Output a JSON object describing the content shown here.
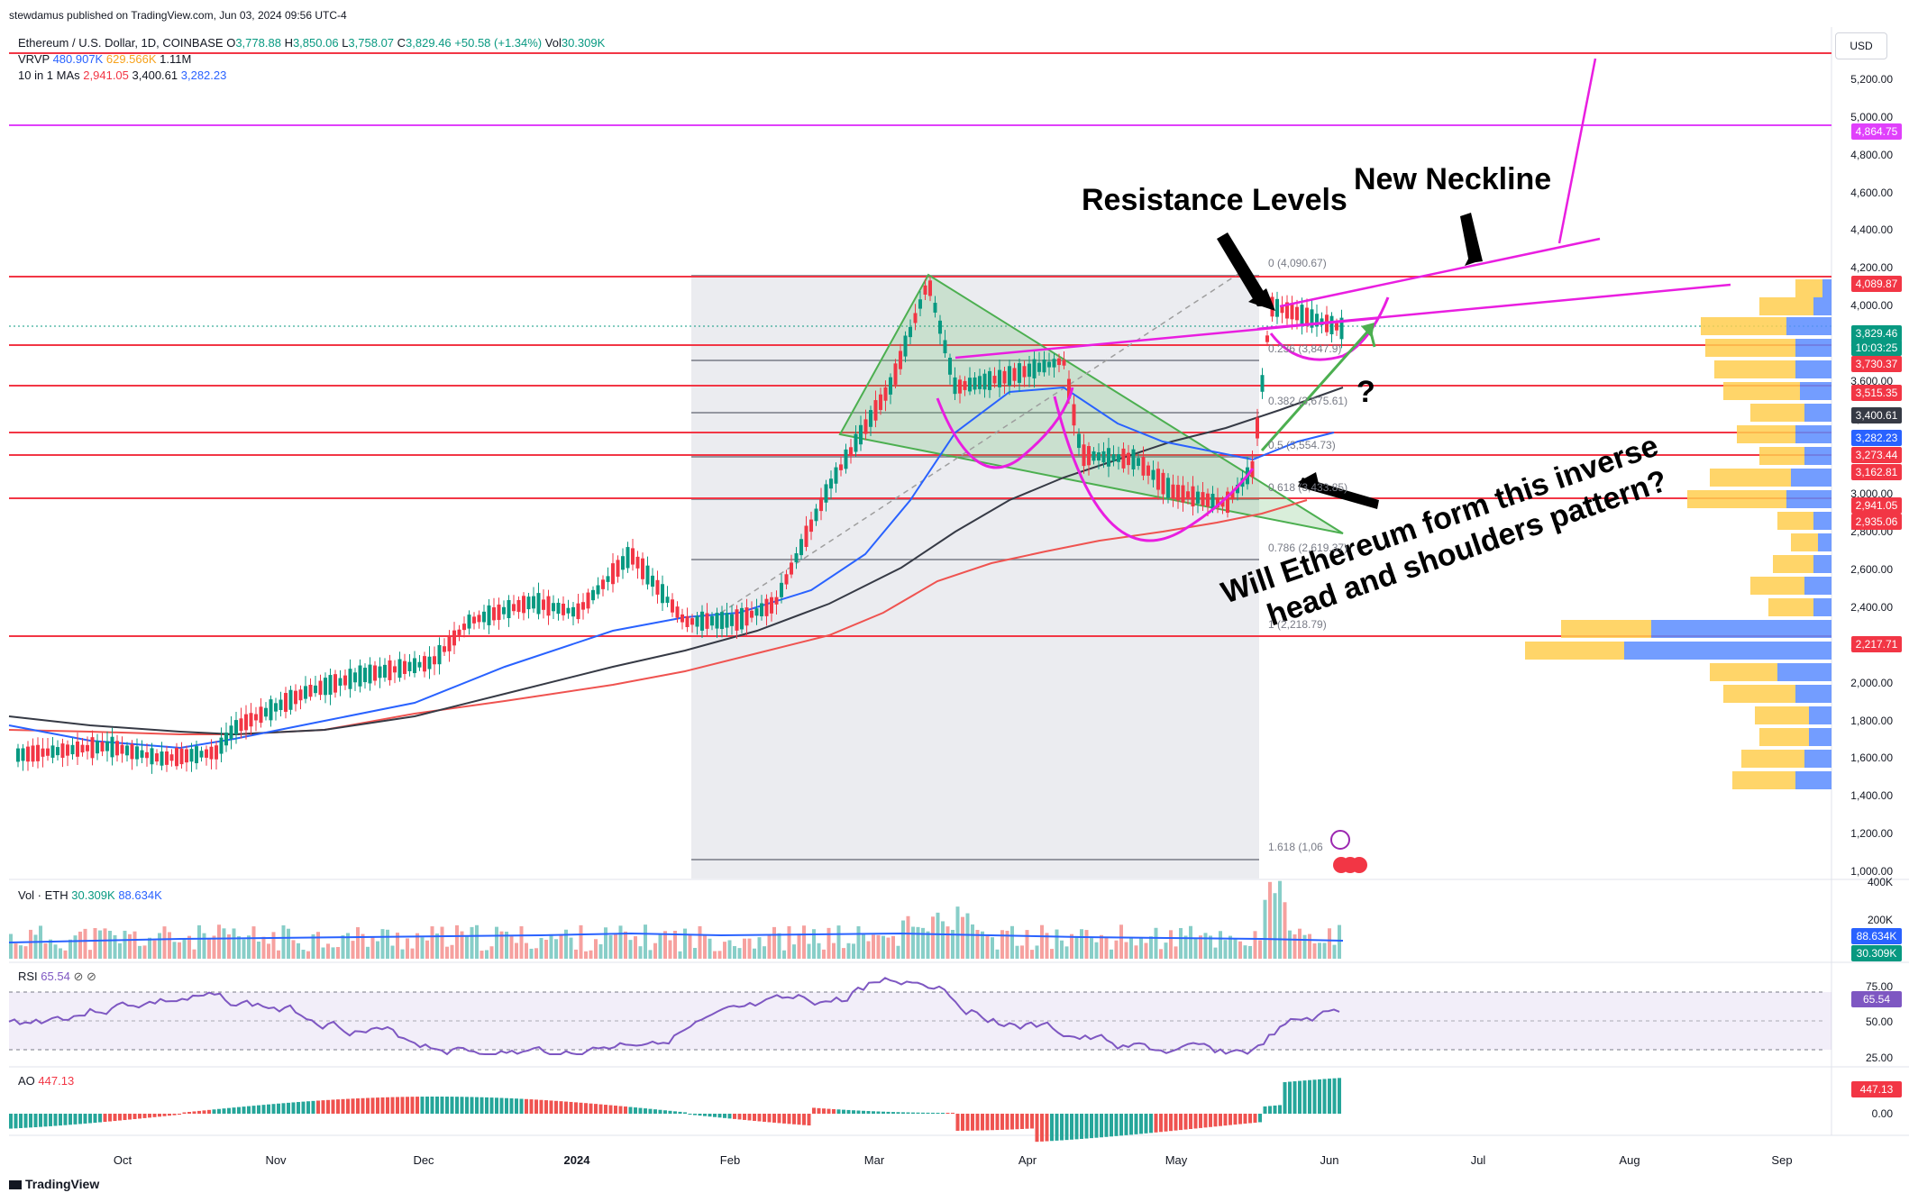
{
  "publisher_line": "stewdamus published on TradingView.com, Jun 03, 2024 09:56 UTC-4",
  "currency_button": "USD",
  "header": {
    "symbol": "Ethereum / U.S. Dollar, 1D, COINBASE",
    "o_label": "O",
    "o": "3,778.88",
    "h_label": "H",
    "h": "3,850.06",
    "l_label": "L",
    "l": "3,758.07",
    "c_label": "C",
    "c": "3,829.46",
    "change": "+50.58 (+1.34%)",
    "vol_label": "Vol",
    "vol": "30.309K",
    "vrvp_label": "VRVP",
    "vrvp_a": "480.907K",
    "vrvp_b": "629.566K",
    "vrvp_c": "1.11M",
    "ma_label": "10 in 1 MAs",
    "ma_a": "2,941.05",
    "ma_b": "3,400.61",
    "ma_c": "3,282.23"
  },
  "annotations": {
    "resistance": "Resistance Levels",
    "neckline": "New Neckline",
    "question": "?",
    "question_line1": "Will Ethereum form this inverse",
    "question_line2": "head and shoulders pattern?"
  },
  "fib_labels": [
    "0 (4,090.67)",
    "0.236 (3,847.9)",
    "0.382 (3,675.61)",
    "0.5 (3,554.73)",
    "0.618 (3,433.85)",
    "0.786 (2,619.37)",
    "1 (2,218.79)",
    "1.618 (1,06"
  ],
  "price_axis": [
    "5,200.00",
    "5,000.00",
    "4,800.00",
    "4,600.00",
    "4,400.00",
    "4,200.00",
    "4,000.00",
    "3,800.00",
    "3,600.00",
    "3,400.00",
    "3,200.00",
    "3,000.00",
    "2,800.00",
    "2,600.00",
    "2,400.00",
    "2,200.00",
    "2,000.00",
    "1,800.00",
    "1,600.00",
    "1,400.00",
    "1,200.00",
    "1,000.00"
  ],
  "price_tags": [
    {
      "v": "4,864.75",
      "color": "#e040fb"
    },
    {
      "v": "4,089.87",
      "color": "#f23645"
    },
    {
      "v": "3,829.46",
      "color": "#089981"
    },
    {
      "v": "10:03:25",
      "color": "#089981"
    },
    {
      "v": "3,730.37",
      "color": "#f23645"
    },
    {
      "v": "3,515.35",
      "color": "#f23645"
    },
    {
      "v": "3,400.61",
      "color": "#363a45"
    },
    {
      "v": "3,282.23",
      "color": "#2962ff"
    },
    {
      "v": "3,273.44",
      "color": "#f23645"
    },
    {
      "v": "3,162.81",
      "color": "#f23645"
    },
    {
      "v": "2,941.05",
      "color": "#f23645"
    },
    {
      "v": "2,935.06",
      "color": "#f23645"
    },
    {
      "v": "2,217.71",
      "color": "#f23645"
    }
  ],
  "x_axis": [
    "Oct",
    "Nov",
    "Dec",
    "2024",
    "Feb",
    "Mar",
    "Apr",
    "May",
    "Jun",
    "Jul",
    "Aug",
    "Sep"
  ],
  "volume_pane": {
    "label": "Vol · ETH",
    "v1": "30.309K",
    "v2": "88.634K",
    "axis": [
      "400K",
      "200K"
    ],
    "tags": [
      {
        "v": "88.634K",
        "color": "#2962ff"
      },
      {
        "v": "30.309K",
        "color": "#089981"
      }
    ]
  },
  "rsi_pane": {
    "label": "RSI",
    "value": "65.54",
    "axis": [
      "75.00",
      "50.00",
      "25.00"
    ],
    "tag": "65.54"
  },
  "ao_pane": {
    "label": "AO",
    "value": "447.13",
    "axis": [
      "0.00"
    ],
    "tag": "447.13"
  },
  "brand": "TradingView",
  "chart_data": {
    "type": "line",
    "title": "Ethereum / U.S. Dollar, 1D, COINBASE",
    "x": [
      "Sep",
      "Oct",
      "Nov",
      "Dec",
      "2024",
      "Feb",
      "Mar",
      "Apr",
      "May",
      "Jun"
    ],
    "series": [
      {
        "values": [
          1640,
          1600,
          1900,
          2200,
          2300,
          2300,
          3400,
          3400,
          3000,
          3800
        ]
      }
    ],
    "horizontal_levels": [
      4864.75,
      4089.87,
      3730.37,
      3515.35,
      3273.44,
      3162.81,
      2935.06,
      2217.71
    ],
    "fib_levels": [
      4090.67,
      3847.9,
      3675.61,
      3554.73,
      3433.85,
      2619.37,
      2218.79
    ],
    "ylim": [
      1000,
      5300
    ]
  }
}
